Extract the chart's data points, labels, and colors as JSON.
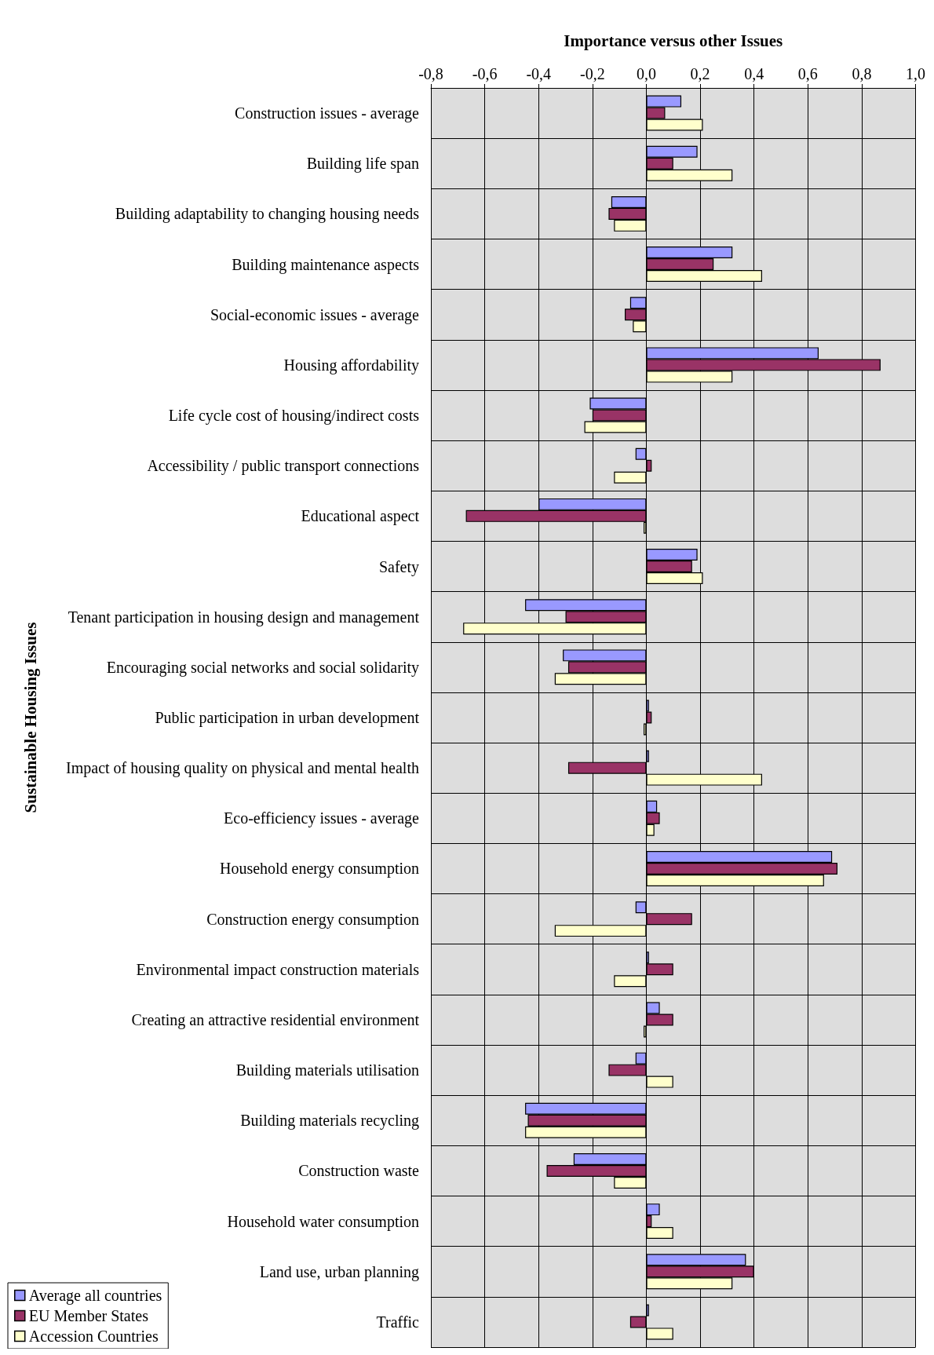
{
  "chart_data": {
    "type": "bar",
    "orientation": "horizontal",
    "xlabel": "Importance versus other Issues",
    "ylabel": "Sustainable Housing Issues",
    "categories": [
      "Construction issues - average",
      "Building life span",
      "Building adaptability to changing housing needs",
      "Building maintenance aspects",
      "Social-economic issues - average",
      "Housing affordability",
      "Life cycle cost of housing/indirect costs",
      "Accessibility / public transport connections",
      "Educational aspect",
      "Safety",
      "Tenant participation in housing design and management",
      "Encouraging social networks and social solidarity",
      "Public participation in urban development",
      "Impact of housing quality on physical and mental health",
      "Eco-efficiency issues - average",
      "Household energy consumption",
      "Construction energy consumption",
      "Environmental impact construction materials",
      "Creating an attractive residential environment",
      "Building materials utilisation",
      "Building materials recycling",
      "Construction waste",
      "Household water consumption",
      "Land use, urban planning",
      "Traffic"
    ],
    "series": [
      {
        "name": "Average all countries",
        "color": "#9999ff",
        "values": [
          0.13,
          0.19,
          -0.13,
          0.32,
          -0.06,
          0.64,
          -0.21,
          -0.04,
          -0.4,
          0.19,
          -0.45,
          -0.31,
          0.01,
          0.01,
          0.04,
          0.69,
          -0.04,
          0.01,
          0.05,
          -0.04,
          -0.45,
          -0.27,
          0.05,
          0.37,
          0.01
        ]
      },
      {
        "name": "EU Member States",
        "color": "#993366",
        "values": [
          0.07,
          0.1,
          -0.14,
          0.25,
          -0.08,
          0.87,
          -0.2,
          0.02,
          -0.67,
          0.17,
          -0.3,
          -0.29,
          0.02,
          -0.29,
          0.05,
          0.71,
          0.17,
          0.1,
          0.1,
          -0.14,
          -0.44,
          -0.37,
          0.02,
          0.4,
          -0.06
        ]
      },
      {
        "name": "Accession Countries",
        "color": "#ffffcc",
        "values": [
          0.21,
          0.32,
          -0.12,
          0.43,
          -0.05,
          0.32,
          -0.23,
          -0.12,
          -0.01,
          0.21,
          -0.68,
          -0.34,
          -0.01,
          0.43,
          0.03,
          0.66,
          -0.34,
          -0.12,
          -0.01,
          0.1,
          -0.45,
          -0.12,
          0.1,
          0.32,
          0.1
        ]
      }
    ],
    "xlim": [
      -0.8,
      1.0
    ],
    "xticks": [
      {
        "value": -0.8,
        "label": "-0,8"
      },
      {
        "value": -0.6,
        "label": "-0,6"
      },
      {
        "value": -0.4,
        "label": "-0,4"
      },
      {
        "value": -0.2,
        "label": "-0,2"
      },
      {
        "value": 0,
        "label": "0,0"
      },
      {
        "value": 0.2,
        "label": "0,2"
      },
      {
        "value": 0.4,
        "label": "0,4"
      },
      {
        "value": 0.6,
        "label": "0,6"
      },
      {
        "value": 0.8,
        "label": "0,8"
      },
      {
        "value": 1.0,
        "label": "1,0"
      }
    ],
    "grid": true,
    "legend": "bottom left"
  }
}
